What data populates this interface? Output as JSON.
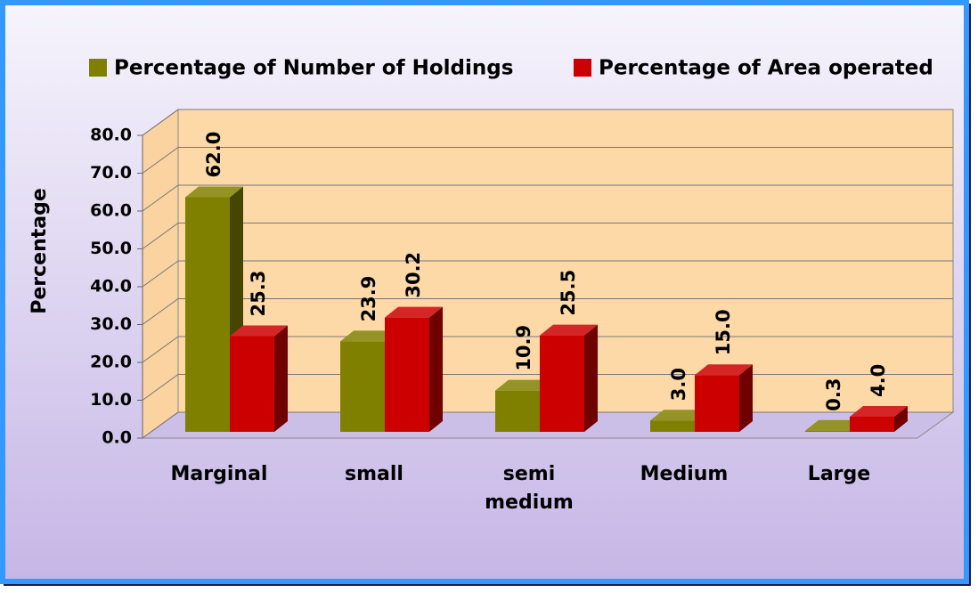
{
  "chart_data": {
    "type": "bar3d",
    "ylabel": "Percentage",
    "categories": [
      "Marginal",
      "small",
      "semi medium",
      "Medium",
      "Large"
    ],
    "series": [
      {
        "name": "Percentage of Number of Holdings",
        "color": "#808000",
        "values": [
          62.0,
          23.9,
          10.9,
          3.0,
          0.3
        ],
        "value_labels": [
          "62.0",
          "23.9",
          "10.9",
          "3.0",
          "0.3"
        ]
      },
      {
        "name": "Percentage of Area operated",
        "color": "#cc0000",
        "values": [
          25.3,
          30.2,
          25.5,
          15.0,
          4.0
        ],
        "value_labels": [
          "25.3",
          "30.2",
          "25.5",
          "15.0",
          "4.0"
        ]
      }
    ],
    "ylim": [
      0,
      80
    ],
    "yticks": [
      {
        "value": 0,
        "label": "0.0"
      },
      {
        "value": 10,
        "label": "10.0"
      },
      {
        "value": 20,
        "label": "20.0"
      },
      {
        "value": 30,
        "label": "30.0"
      },
      {
        "value": 40,
        "label": "40.0"
      },
      {
        "value": 50,
        "label": "50.0"
      },
      {
        "value": 60,
        "label": "60.0"
      },
      {
        "value": 70,
        "label": "70.0"
      },
      {
        "value": 80,
        "label": "80.0"
      }
    ],
    "grid": true,
    "legend": "top"
  }
}
